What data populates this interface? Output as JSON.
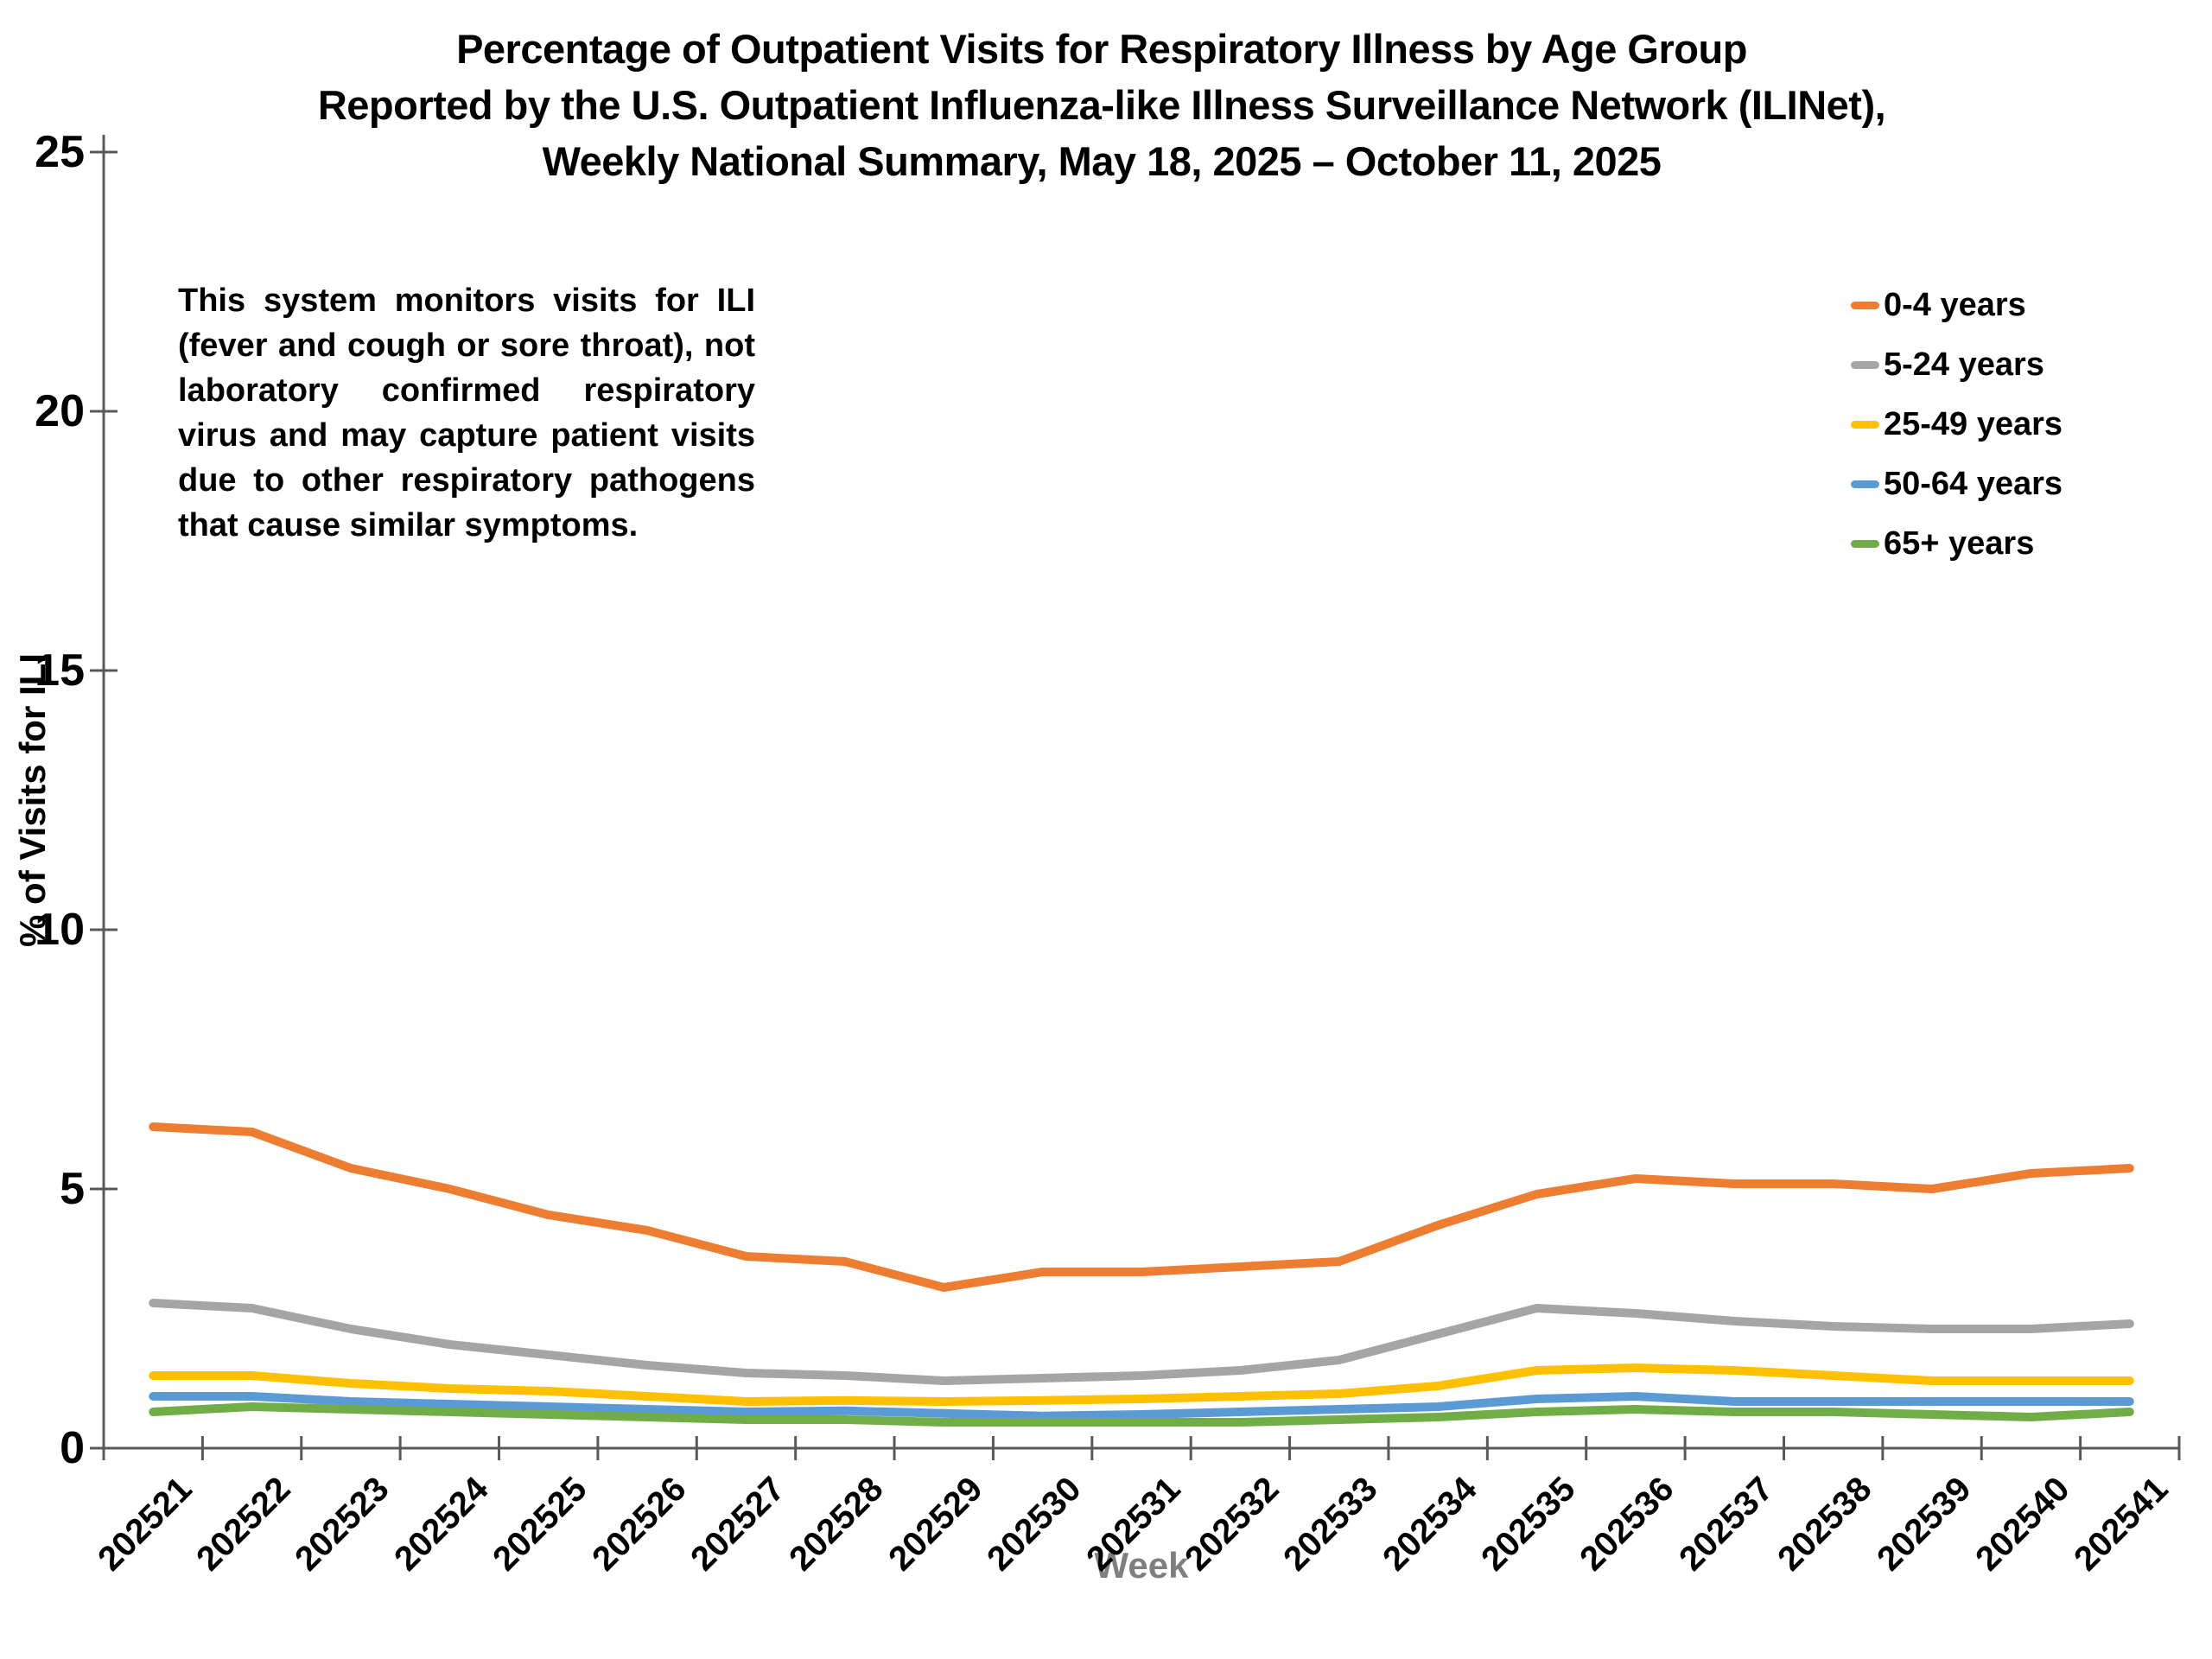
{
  "title": {
    "line1": "Percentage of Outpatient Visits for Respiratory Illness by Age Group",
    "line2": "Reported by the U.S. Outpatient Influenza-like Illness Surveillance Network (ILINet),",
    "line3": "Weekly National Summary, May 18, 2025 – October 11, 2025"
  },
  "annotation": "This system monitors visits for ILI (fever and cough or sore throat), not laboratory confirmed respiratory virus and may capture patient visits due to other respiratory pathogens that cause similar symptoms.",
  "chart_data": {
    "type": "line",
    "title": "Percentage of Outpatient Visits for Respiratory Illness by Age Group",
    "xlabel": "Week",
    "ylabel": "% of Visits for ILI",
    "ylim": [
      0,
      25
    ],
    "y_ticks": [
      0,
      5,
      10,
      15,
      20,
      25
    ],
    "grid": false,
    "legend_position": "upper-right",
    "axis_color": "#595959",
    "xlabel_color": "#7F7F7F",
    "categories": [
      "202521",
      "202522",
      "202523",
      "202524",
      "202525",
      "202526",
      "202527",
      "202528",
      "202529",
      "202530",
      "202531",
      "202532",
      "202533",
      "202534",
      "202535",
      "202536",
      "202537",
      "202538",
      "202539",
      "202540",
      "202541"
    ],
    "series": [
      {
        "name": "0-4 years",
        "color": "#ED7D31",
        "values": [
          6.2,
          6.1,
          5.4,
          5.0,
          4.5,
          4.2,
          3.7,
          3.6,
          3.1,
          3.4,
          3.4,
          3.5,
          3.6,
          4.3,
          4.9,
          5.2,
          5.1,
          5.1,
          5.0,
          5.3,
          5.4
        ]
      },
      {
        "name": "5-24 years",
        "color": "#A5A5A5",
        "values": [
          2.8,
          2.7,
          2.3,
          2.0,
          1.8,
          1.6,
          1.45,
          1.4,
          1.3,
          1.35,
          1.4,
          1.5,
          1.7,
          2.2,
          2.7,
          2.6,
          2.45,
          2.35,
          2.3,
          2.3,
          2.4
        ]
      },
      {
        "name": "25-49 years",
        "color": "#FFC000",
        "values": [
          1.4,
          1.4,
          1.25,
          1.15,
          1.1,
          1.0,
          0.9,
          0.92,
          0.9,
          0.92,
          0.95,
          1.0,
          1.05,
          1.2,
          1.5,
          1.55,
          1.5,
          1.4,
          1.3,
          1.3,
          1.3
        ]
      },
      {
        "name": "50-64 years",
        "color": "#5B9BD5",
        "values": [
          1.0,
          1.0,
          0.9,
          0.85,
          0.8,
          0.75,
          0.7,
          0.72,
          0.67,
          0.62,
          0.65,
          0.7,
          0.75,
          0.8,
          0.95,
          1.0,
          0.9,
          0.9,
          0.9,
          0.9,
          0.9
        ]
      },
      {
        "name": "65+ years",
        "color": "#70AD47",
        "values": [
          0.7,
          0.8,
          0.75,
          0.7,
          0.65,
          0.6,
          0.55,
          0.55,
          0.5,
          0.5,
          0.5,
          0.5,
          0.55,
          0.6,
          0.7,
          0.75,
          0.7,
          0.7,
          0.65,
          0.6,
          0.7
        ]
      }
    ]
  }
}
